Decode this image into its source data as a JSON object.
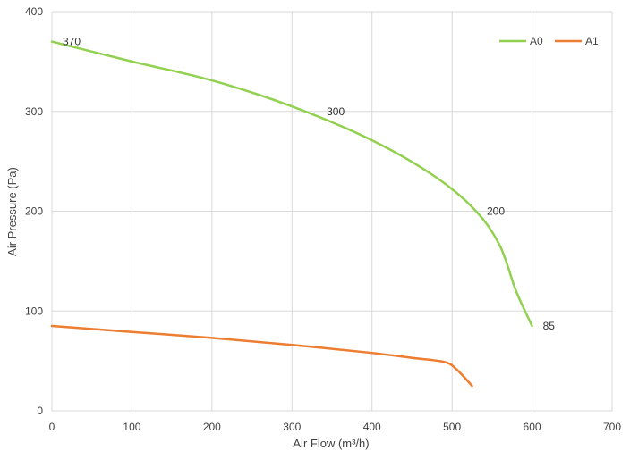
{
  "chart_data": {
    "type": "line",
    "title": "",
    "xlabel": "Air Flow  (m³/h)",
    "ylabel": "Air Pressure  (Pa)",
    "xlim": [
      0,
      700
    ],
    "ylim": [
      0,
      400
    ],
    "x_ticks": [
      0,
      100,
      200,
      300,
      400,
      500,
      600,
      700
    ],
    "y_ticks": [
      0,
      100,
      200,
      300,
      400
    ],
    "grid": true,
    "legend_position": "top-right",
    "series": [
      {
        "name": "A0",
        "color": "#92d050",
        "points": [
          [
            0,
            370
          ],
          [
            100,
            350
          ],
          [
            200,
            331
          ],
          [
            300,
            305
          ],
          [
            400,
            271
          ],
          [
            480,
            234
          ],
          [
            530,
            200
          ],
          [
            560,
            165
          ],
          [
            580,
            120
          ],
          [
            600,
            85
          ]
        ],
        "labels": [
          {
            "x": 0,
            "y": 370,
            "text": "370",
            "pos": "right"
          },
          {
            "x": 330,
            "y": 300,
            "text": "300",
            "pos": "right"
          },
          {
            "x": 530,
            "y": 200,
            "text": "200",
            "pos": "right"
          },
          {
            "x": 600,
            "y": 85,
            "text": "85",
            "pos": "right"
          }
        ]
      },
      {
        "name": "A1",
        "color": "#ed7d31",
        "points": [
          [
            0,
            85
          ],
          [
            100,
            79
          ],
          [
            200,
            73
          ],
          [
            300,
            66
          ],
          [
            400,
            58
          ],
          [
            450,
            53
          ],
          [
            490,
            49
          ],
          [
            505,
            42
          ],
          [
            525,
            25
          ]
        ],
        "labels": []
      }
    ]
  }
}
